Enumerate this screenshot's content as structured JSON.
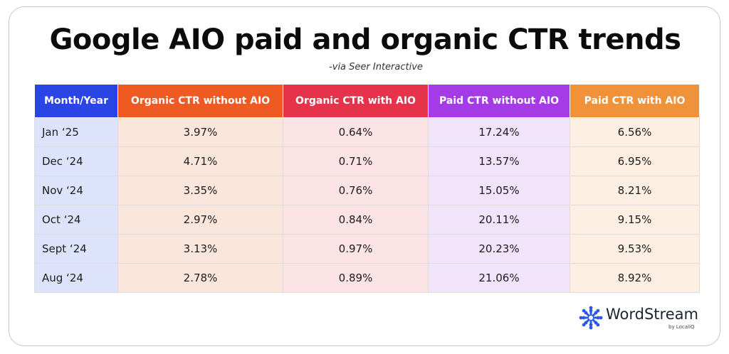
{
  "header": {
    "title": "Google AIO paid and organic CTR trends",
    "subtitle": "-via Seer Interactive"
  },
  "chart_data": {
    "type": "table",
    "columns": [
      {
        "label": "Month/Year",
        "header_color": "#2a44e6",
        "cell_color": "#dde3fb"
      },
      {
        "label": "Organic CTR without AIO",
        "header_color": "#ef5a22",
        "cell_color": "#fbe6dc"
      },
      {
        "label": "Organic CTR with AIO",
        "header_color": "#e6324a",
        "cell_color": "#fbe3e6"
      },
      {
        "label": "Paid CTR without AIO",
        "header_color": "#a53be6",
        "cell_color": "#f1e3fa"
      },
      {
        "label": "Paid CTR with AIO",
        "header_color": "#f0923a",
        "cell_color": "#fdf0e2"
      }
    ],
    "rows": [
      [
        "Jan ‘25",
        "3.97%",
        "0.64%",
        "17.24%",
        "6.56%"
      ],
      [
        "Dec ‘24",
        "4.71%",
        "0.71%",
        "13.57%",
        "6.95%"
      ],
      [
        "Nov ‘24",
        "3.35%",
        "0.76%",
        "15.05%",
        "8.21%"
      ],
      [
        "Oct ‘24",
        "2.97%",
        "0.84%",
        "20.11%",
        "9.15%"
      ],
      [
        "Sept ‘24",
        "3.13%",
        "0.97%",
        "20.23%",
        "9.53%"
      ],
      [
        "Aug ‘24",
        "2.78%",
        "0.89%",
        "21.06%",
        "8.92%"
      ]
    ]
  },
  "brand": {
    "name": "WordStream",
    "tagline": "by LocaliQ",
    "icon": "snowflake-icon",
    "color": "#2b59e6"
  }
}
